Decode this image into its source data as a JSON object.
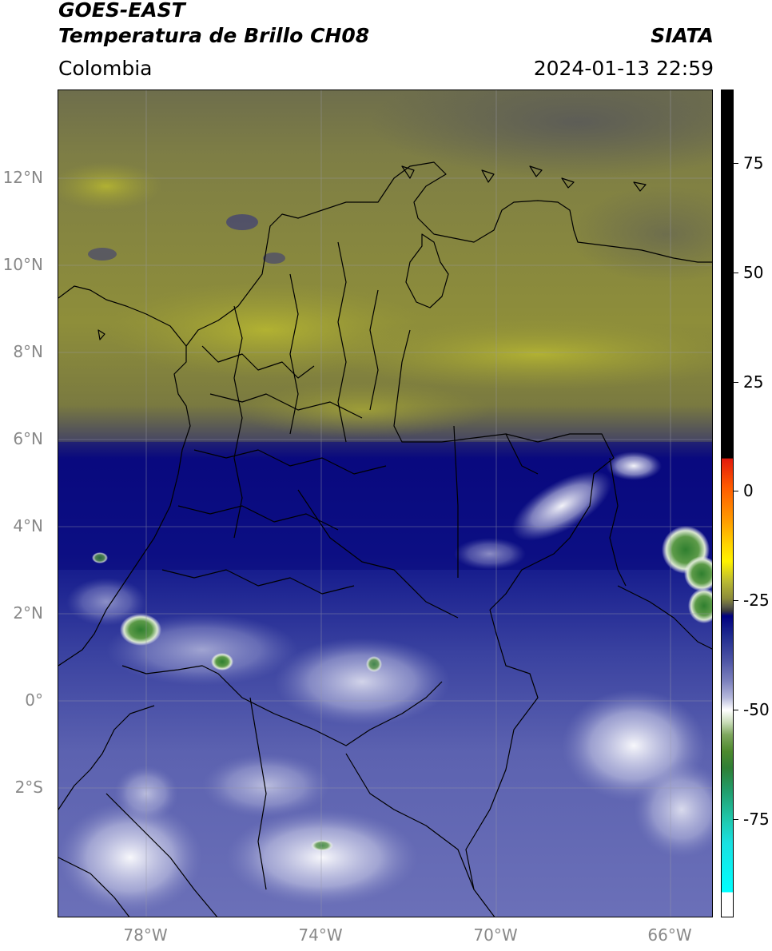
{
  "header": {
    "satellite": "GOES-EAST",
    "product": "Temperatura de Brillo CH08",
    "region": "Colombia",
    "source": "SIATA",
    "datetime": "2024-01-13 22:59"
  },
  "axes": {
    "lat_labels": [
      "12°N",
      "10°N",
      "8°N",
      "6°N",
      "4°N",
      "2°N",
      "0°",
      "2°S"
    ],
    "lon_labels": [
      "78°W",
      "74°W",
      "70°W",
      "66°W"
    ]
  },
  "colorbar": {
    "tick_labels": [
      "75",
      "50",
      "25",
      "0",
      "-25",
      "-50",
      "-75"
    ]
  },
  "colors": {
    "warm_olive": "#8a8a3c",
    "cold_navy": "#0a0a80",
    "deep_cold_white": "#ffffff",
    "coldest_green": "#3d8a35"
  }
}
